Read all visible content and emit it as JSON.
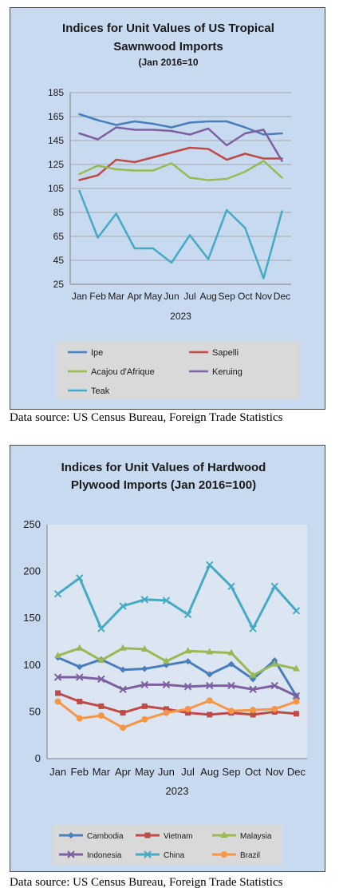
{
  "charts": [
    {
      "title_lines": [
        "Indices for Unit Values of US Tropical",
        "Sawnwood Imports"
      ],
      "subtitle": "(Jan 2016=10",
      "xgroup": "2023",
      "source": "Data source: US Census Bureau, Foreign Trade Statistics",
      "chart_data": {
        "type": "line",
        "categories": [
          "Jan",
          "Feb",
          "Mar",
          "Apr",
          "May",
          "Jun",
          "Jul",
          "Aug",
          "Sep",
          "Oct",
          "Nov",
          "Dec"
        ],
        "yticks": [
          25,
          45,
          65,
          85,
          105,
          125,
          145,
          165,
          185
        ],
        "ylim": [
          25,
          185
        ],
        "grid": true,
        "legend_position": "bottom",
        "series": [
          {
            "name": "Ipe",
            "color": "#4a7ebb",
            "values": [
              167,
              162,
              158,
              161,
              159,
              156,
              160,
              161,
              161,
              156,
              150,
              151
            ]
          },
          {
            "name": "Sapelli",
            "color": "#be4b48",
            "values": [
              112,
              116,
              129,
              127,
              131,
              135,
              139,
              138,
              129,
              134,
              130,
              130
            ]
          },
          {
            "name": "Acajou d'Afrique",
            "color": "#98b954",
            "values": [
              117,
              124,
              121,
              120,
              120,
              126,
              114,
              112,
              113,
              119,
              128,
              114
            ]
          },
          {
            "name": "Keruing",
            "color": "#7d60a0",
            "values": [
              151,
              146,
              156,
              154,
              154,
              153,
              150,
              155,
              141,
              151,
              154,
              128
            ]
          },
          {
            "name": "Teak",
            "color": "#46aac5",
            "values": [
              103,
              64,
              84,
              55,
              55,
              43,
              66,
              46,
              87,
              72,
              30,
              86
            ]
          }
        ]
      }
    },
    {
      "title_lines": [
        "Indices for Unit Values of Hardwood",
        "Plywood Imports (Jan 2016=100)"
      ],
      "subtitle": "",
      "xgroup": "2023",
      "source": "Data source: US Census Bureau, Foreign Trade Statistics",
      "chart_data": {
        "type": "line",
        "categories": [
          "Jan",
          "Feb",
          "Mar",
          "Apr",
          "May",
          "Jun",
          "Jul",
          "Aug",
          "Sep",
          "Oct",
          "Nov",
          "Dec"
        ],
        "yticks": [
          0,
          50,
          100,
          150,
          200,
          250
        ],
        "ylim": [
          0,
          250
        ],
        "grid": false,
        "legend_position": "bottom",
        "series": [
          {
            "name": "Cambodia",
            "color": "#4a7ebb",
            "marker": "diamond",
            "values": [
              108,
              98,
              106,
              95,
              96,
              100,
              104,
              90,
              101,
              85,
              105,
              67
            ]
          },
          {
            "name": "Vietnam",
            "color": "#be4b48",
            "marker": "square",
            "values": [
              70,
              61,
              56,
              49,
              56,
              53,
              49,
              47,
              49,
              47,
              50,
              48
            ]
          },
          {
            "name": "Malaysia",
            "color": "#98b954",
            "marker": "triangle",
            "values": [
              110,
              118,
              105,
              118,
              117,
              104,
              115,
              114,
              113,
              89,
              101,
              96
            ]
          },
          {
            "name": "Indonesia",
            "color": "#7d60a0",
            "marker": "x",
            "values": [
              87,
              87,
              85,
              74,
              79,
              79,
              77,
              78,
              78,
              74,
              78,
              67
            ]
          },
          {
            "name": "China",
            "color": "#46aac5",
            "marker": "x",
            "values": [
              176,
              193,
              139,
              163,
              170,
              169,
              154,
              207,
              184,
              139,
              184,
              158
            ]
          },
          {
            "name": "Brazil",
            "color": "#f79646",
            "marker": "circle",
            "values": [
              61,
              43,
              46,
              33,
              42,
              49,
              53,
              62,
              51,
              52,
              53,
              61
            ]
          }
        ]
      }
    }
  ]
}
